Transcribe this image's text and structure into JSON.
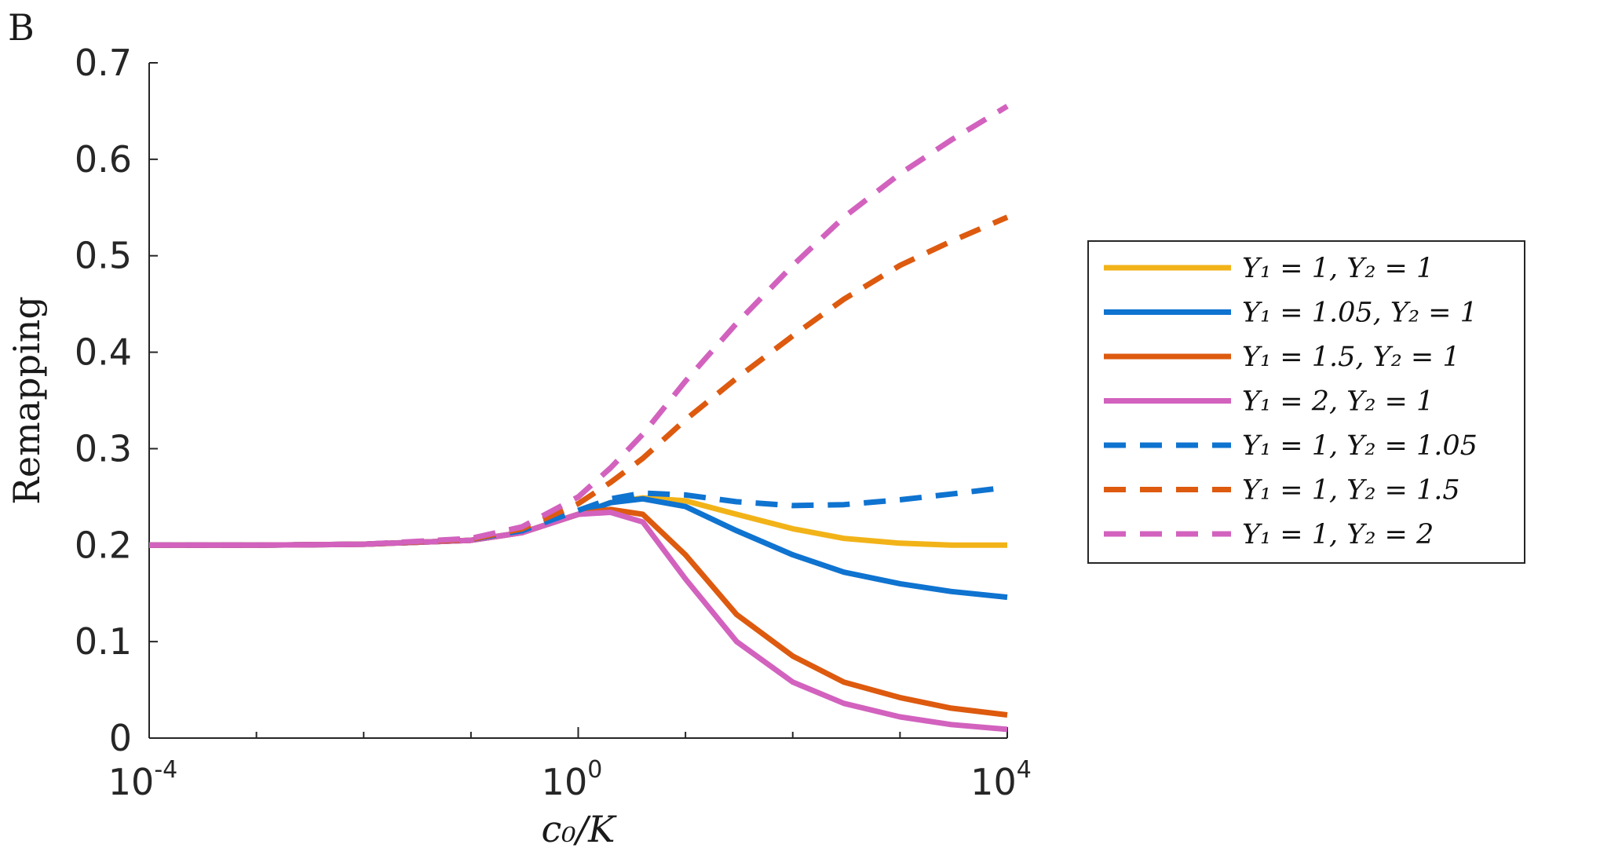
{
  "panel_label": "B",
  "chart_data": {
    "type": "line",
    "xscale": "log",
    "xlim": [
      0.0001,
      10000
    ],
    "ylim": [
      0,
      0.7
    ],
    "xlabel": "c₀/K",
    "ylabel": "Remapping",
    "xticks": [
      {
        "base": "10",
        "exp": "-4",
        "value": 0.0001
      },
      {
        "base": "10",
        "exp": "0",
        "value": 1
      },
      {
        "base": "10",
        "exp": "4",
        "value": 10000
      }
    ],
    "yticks": [
      {
        "label": "0",
        "value": 0
      },
      {
        "label": "0.1",
        "value": 0.1
      },
      {
        "label": "0.2",
        "value": 0.2
      },
      {
        "label": "0.3",
        "value": 0.3
      },
      {
        "label": "0.4",
        "value": 0.4
      },
      {
        "label": "0.5",
        "value": 0.5
      },
      {
        "label": "0.6",
        "value": 0.6
      },
      {
        "label": "0.7",
        "value": 0.7
      }
    ],
    "legend_position": "right",
    "x": [
      0.0001,
      0.001,
      0.01,
      0.1,
      0.3,
      1,
      2,
      4,
      10,
      30,
      100,
      300,
      1000,
      3000,
      10000
    ],
    "series": [
      {
        "name": "Y₁ = 1, Y₂ = 1",
        "color": "#F2B318",
        "dashed": false,
        "values": [
          0.2,
          0.2,
          0.201,
          0.205,
          0.213,
          0.232,
          0.244,
          0.249,
          0.246,
          0.232,
          0.217,
          0.207,
          0.202,
          0.2,
          0.2
        ]
      },
      {
        "name": "Y₁ = 1.05, Y₂ = 1",
        "color": "#0F73D0",
        "dashed": false,
        "values": [
          0.2,
          0.2,
          0.201,
          0.205,
          0.213,
          0.232,
          0.244,
          0.248,
          0.24,
          0.215,
          0.19,
          0.172,
          0.16,
          0.152,
          0.146
        ]
      },
      {
        "name": "Y₁ = 1.5, Y₂ = 1",
        "color": "#DD5A0F",
        "dashed": false,
        "values": [
          0.2,
          0.2,
          0.201,
          0.205,
          0.213,
          0.232,
          0.237,
          0.232,
          0.19,
          0.128,
          0.085,
          0.058,
          0.042,
          0.031,
          0.024
        ]
      },
      {
        "name": "Y₁ = 2, Y₂ = 1",
        "color": "#D262BE",
        "dashed": false,
        "values": [
          0.2,
          0.2,
          0.201,
          0.205,
          0.213,
          0.232,
          0.234,
          0.224,
          0.165,
          0.1,
          0.058,
          0.036,
          0.022,
          0.014,
          0.009
        ]
      },
      {
        "name": "Y₁ = 1, Y₂ = 1.05",
        "color": "#0F73D0",
        "dashed": true,
        "values": [
          0.2,
          0.2,
          0.201,
          0.206,
          0.215,
          0.236,
          0.248,
          0.254,
          0.252,
          0.245,
          0.241,
          0.242,
          0.247,
          0.253,
          0.26
        ]
      },
      {
        "name": "Y₁ = 1, Y₂ = 1.5",
        "color": "#DD5A0F",
        "dashed": true,
        "values": [
          0.2,
          0.2,
          0.201,
          0.206,
          0.217,
          0.243,
          0.265,
          0.29,
          0.33,
          0.373,
          0.417,
          0.455,
          0.49,
          0.515,
          0.54
        ]
      },
      {
        "name": "Y₁ = 1, Y₂ = 2",
        "color": "#D262BE",
        "dashed": true,
        "values": [
          0.2,
          0.2,
          0.201,
          0.207,
          0.219,
          0.25,
          0.28,
          0.315,
          0.37,
          0.43,
          0.49,
          0.54,
          0.585,
          0.62,
          0.655
        ]
      }
    ]
  }
}
